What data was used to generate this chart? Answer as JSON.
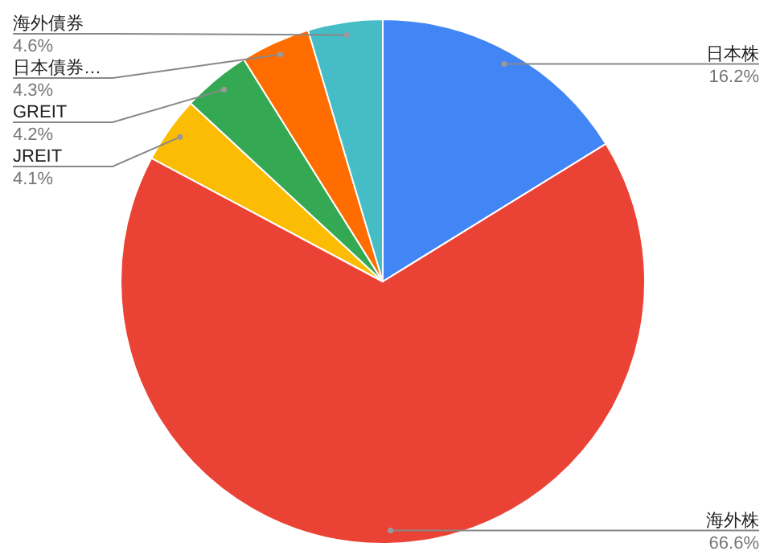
{
  "chart_data": {
    "type": "pie",
    "categories": [
      "日本株",
      "海外株",
      "JREIT",
      "GREIT",
      "日本債券…",
      "海外債券"
    ],
    "values": [
      16.2,
      66.6,
      4.1,
      4.2,
      4.3,
      4.6
    ],
    "colors": [
      "#4285f4",
      "#ea4335",
      "#fbbc04",
      "#34a853",
      "#ff6d01",
      "#46bdc6"
    ],
    "value_labels": [
      "16.2%",
      "66.6%",
      "4.1%",
      "4.2%",
      "4.3%",
      "4.6%"
    ]
  }
}
